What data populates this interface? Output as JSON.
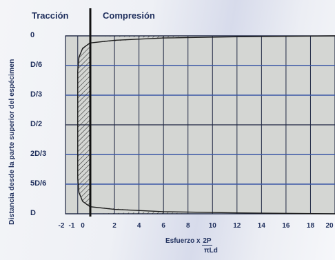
{
  "header": {
    "left": "Tracción",
    "right": "Compresión"
  },
  "chart_data": {
    "type": "line",
    "title": "",
    "ylabel": "Distancia desde la parte superior del espécimen",
    "xlabel_prefix": "Esfuerzo x",
    "xlabel_fraction_numerator": "2P",
    "xlabel_fraction_denominator": "πLd",
    "y_tick_labels": [
      "0",
      "D/6",
      "D/3",
      "D/2",
      "2D/3",
      "5D/6",
      "D"
    ],
    "x_tick_labels": [
      "-2",
      "-1",
      "0",
      "2",
      "4",
      "6",
      "8",
      "10",
      "12",
      "14",
      "16",
      "18",
      "20"
    ],
    "xlim": [
      -2,
      20
    ],
    "ylim": [
      0,
      1
    ],
    "grid": true,
    "series": [
      {
        "values": [
          [
            20,
            0.0
          ],
          [
            12,
            0.005
          ],
          [
            6,
            0.012
          ],
          [
            2,
            0.025
          ],
          [
            0,
            0.04
          ],
          [
            -0.6,
            0.07
          ],
          [
            -0.9,
            0.12
          ],
          [
            -1.0,
            0.2
          ],
          [
            -1.0,
            0.35
          ],
          [
            -1.0,
            0.5
          ],
          [
            -1.0,
            0.65
          ],
          [
            -1.0,
            0.8
          ],
          [
            -0.9,
            0.88
          ],
          [
            -0.6,
            0.93
          ],
          [
            0,
            0.96
          ],
          [
            2,
            0.975
          ],
          [
            6,
            0.988
          ],
          [
            12,
            0.995
          ],
          [
            20,
            1.0
          ]
        ]
      }
    ],
    "colors": {
      "plot_bg": "#d4d6d3",
      "grid_dark": "#1c2440",
      "grid_blue": "#3a56a6",
      "curve": "#1a1a1a",
      "text": "#1e2e5c"
    }
  }
}
